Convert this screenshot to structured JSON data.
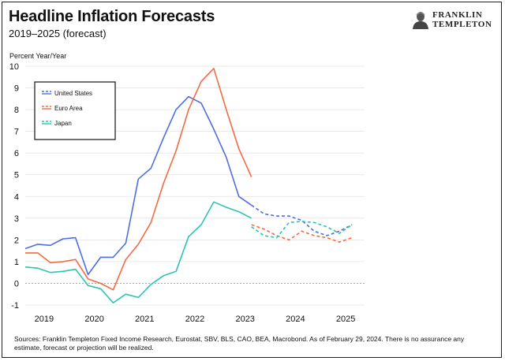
{
  "title": "Headline Inflation Forecasts",
  "subtitle": "2019–2025 (forecast)",
  "logo": {
    "line1": "FRANKLIN",
    "line2": "TEMPLETON"
  },
  "source_note": "Sources: Franklin Templeton Fixed Income Research, Eurostat, SBV, BLS, CAO, BEA, Macrobond. As of February 29, 2024. There is no assurance any estimate, forecast or projection will be realized.",
  "chart_data": {
    "type": "line",
    "title": "Headline Inflation Forecasts",
    "subtitle": "2019–2025 (forecast)",
    "ylabel": "Percent Year/Year",
    "xlabel": "",
    "ylim": [
      -1,
      10
    ],
    "yticks": [
      -1,
      0,
      1,
      2,
      3,
      4,
      5,
      6,
      7,
      8,
      9,
      10
    ],
    "xlim": [
      2019.0,
      2025.75
    ],
    "xticks": [
      2019,
      2020,
      2021,
      2022,
      2023,
      2024,
      2025
    ],
    "grid": true,
    "legend_position": "top-left",
    "colors": {
      "united_states": "#4f6ee0",
      "euro_area": "#f26b43",
      "japan": "#2ec4b0",
      "zero_line": "#999999"
    },
    "series": [
      {
        "name": "United States",
        "color": "#4f6ee0",
        "actual": {
          "x": [
            2019.0,
            2019.25,
            2019.5,
            2019.75,
            2020.0,
            2020.25,
            2020.5,
            2020.75,
            2021.0,
            2021.25,
            2021.5,
            2021.75,
            2022.0,
            2022.25,
            2022.5,
            2022.75,
            2023.0,
            2023.25,
            2023.5
          ],
          "y": [
            1.6,
            1.8,
            1.75,
            2.05,
            2.1,
            0.4,
            1.2,
            1.2,
            1.85,
            4.8,
            5.3,
            6.7,
            8.0,
            8.6,
            8.3,
            7.1,
            5.8,
            4.0,
            3.6
          ]
        },
        "forecast": {
          "x": [
            2023.5,
            2023.75,
            2024.0,
            2024.25,
            2024.5,
            2024.75,
            2025.0,
            2025.25,
            2025.5
          ],
          "y": [
            3.6,
            3.2,
            3.1,
            3.1,
            2.9,
            2.4,
            2.2,
            2.4,
            2.7
          ]
        }
      },
      {
        "name": "Euro Area",
        "color": "#f26b43",
        "actual": {
          "x": [
            2019.0,
            2019.25,
            2019.5,
            2019.75,
            2020.0,
            2020.25,
            2020.5,
            2020.75,
            2021.0,
            2021.25,
            2021.5,
            2021.75,
            2022.0,
            2022.25,
            2022.5,
            2022.75,
            2023.0,
            2023.25,
            2023.5
          ],
          "y": [
            1.4,
            1.4,
            0.95,
            1.0,
            1.1,
            0.2,
            0.0,
            -0.3,
            1.1,
            1.8,
            2.8,
            4.6,
            6.1,
            8.0,
            9.3,
            9.9,
            8.0,
            6.2,
            4.9
          ]
        },
        "forecast": {
          "x": [
            2023.5,
            2023.75,
            2024.0,
            2024.25,
            2024.5,
            2024.75,
            2025.0,
            2025.25,
            2025.5
          ],
          "y": [
            2.7,
            2.5,
            2.2,
            2.0,
            2.4,
            2.2,
            2.1,
            1.9,
            2.1
          ]
        }
      },
      {
        "name": "Japan",
        "color": "#2ec4b0",
        "actual": {
          "x": [
            2019.0,
            2019.25,
            2019.5,
            2019.75,
            2020.0,
            2020.25,
            2020.5,
            2020.75,
            2021.0,
            2021.25,
            2021.5,
            2021.75,
            2022.0,
            2022.25,
            2022.5,
            2022.75,
            2023.0,
            2023.25,
            2023.5
          ],
          "y": [
            0.75,
            0.7,
            0.5,
            0.55,
            0.65,
            -0.1,
            -0.25,
            -0.9,
            -0.5,
            -0.65,
            -0.05,
            0.35,
            0.55,
            2.15,
            2.7,
            3.75,
            3.5,
            3.3,
            3.0
          ]
        },
        "forecast": {
          "x": [
            2023.5,
            2023.75,
            2024.0,
            2024.25,
            2024.5,
            2024.75,
            2025.0,
            2025.25,
            2025.5
          ],
          "y": [
            2.6,
            2.2,
            2.1,
            2.8,
            2.85,
            2.8,
            2.6,
            2.3,
            2.7
          ]
        }
      }
    ]
  }
}
